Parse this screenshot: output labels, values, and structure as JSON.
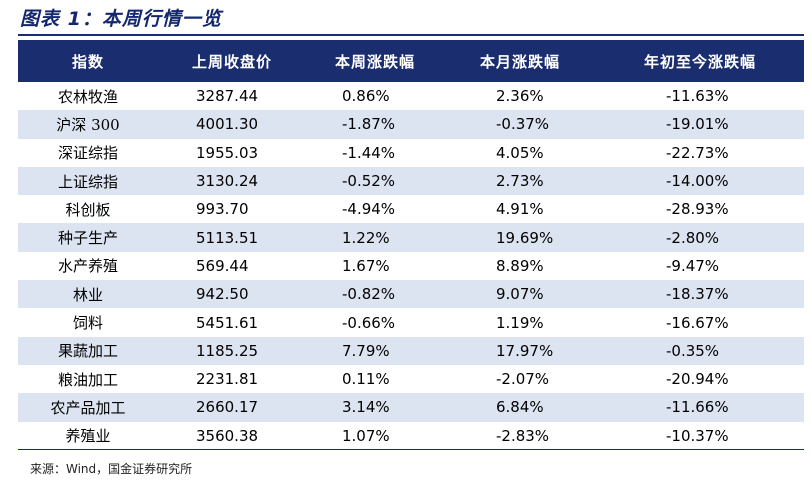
{
  "title": "图表 1：本周行情一览",
  "columns": [
    "指数",
    "上周收盘价",
    "本周涨跌幅",
    "本月涨跌幅",
    "年初至今涨跌幅"
  ],
  "rows": [
    [
      "农林牧渔",
      "3287.44",
      "0.86%",
      "2.36%",
      "-11.63%"
    ],
    [
      "沪深 300",
      "4001.30",
      "-1.87%",
      "-0.37%",
      "-19.01%"
    ],
    [
      "深证综指",
      "1955.03",
      "-1.44%",
      "4.05%",
      "-22.73%"
    ],
    [
      "上证综指",
      "3130.24",
      "-0.52%",
      "2.73%",
      "-14.00%"
    ],
    [
      "科创板",
      "993.70",
      "-4.94%",
      "4.91%",
      "-28.93%"
    ],
    [
      "种子生产",
      "5113.51",
      "1.22%",
      "19.69%",
      "-2.80%"
    ],
    [
      "水产养殖",
      "569.44",
      "1.67%",
      "8.89%",
      "-9.47%"
    ],
    [
      "林业",
      "942.50",
      "-0.82%",
      "9.07%",
      "-18.37%"
    ],
    [
      "饲料",
      "5451.61",
      "-0.66%",
      "1.19%",
      "-16.67%"
    ],
    [
      "果蔬加工",
      "1185.25",
      "7.79%",
      "17.97%",
      "-0.35%"
    ],
    [
      "粮油加工",
      "2231.81",
      "0.11%",
      "-2.07%",
      "-20.94%"
    ],
    [
      "农产品加工",
      "2660.17",
      "3.14%",
      "6.84%",
      "-11.66%"
    ],
    [
      "养殖业",
      "3560.38",
      "1.07%",
      "-2.83%",
      "-10.37%"
    ]
  ],
  "source": "来源：Wind，国金证券研究所",
  "colors": {
    "header_bg": "#1a2d6e",
    "stripe": "#dde4f1",
    "title": "#14286e"
  }
}
